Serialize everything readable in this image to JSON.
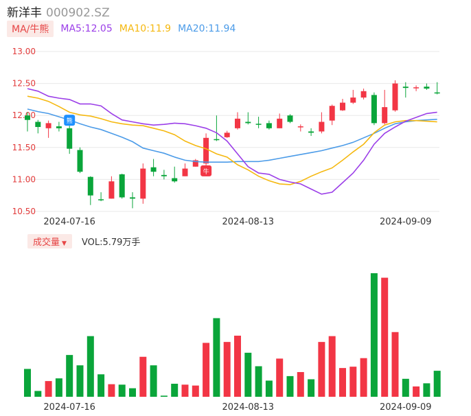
{
  "header": {
    "name": "新洋丰",
    "code": "000902.SZ"
  },
  "ma_legend": {
    "tag": "MA/牛熊",
    "items": [
      {
        "label": "MA5:12.05",
        "color": "#9b3ee8"
      },
      {
        "label": "MA10:11.9",
        "color": "#f5b80f"
      },
      {
        "label": "MA20:11.94",
        "color": "#4b9be8"
      }
    ]
  },
  "volume_legend": {
    "tag": "成交量",
    "value": "VOL:5.79万手"
  },
  "markers": {
    "sell": "熊",
    "buy": "牛"
  },
  "colors": {
    "up": "#f23645",
    "down": "#0aa53a",
    "grid": "#e8e8e8",
    "axis_label": "#e23b3b"
  },
  "chart_data": [
    {
      "type": "candlestick",
      "title": "",
      "y_ticks": [
        "13.00",
        "12.50",
        "12.00",
        "11.50",
        "11.00",
        "10.50"
      ],
      "ylim": [
        10.5,
        13.0
      ],
      "x_labels": [
        {
          "label": "2024-07-16",
          "index": 4
        },
        {
          "label": "2024-08-13",
          "index": 21
        },
        {
          "label": "2024-09-09",
          "index": 36
        }
      ],
      "candles": [
        {
          "o": 12.0,
          "c": 11.93,
          "h": 12.05,
          "l": 11.75
        },
        {
          "o": 11.9,
          "c": 11.82,
          "h": 11.93,
          "l": 11.72
        },
        {
          "o": 11.8,
          "c": 11.88,
          "h": 11.92,
          "l": 11.65
        },
        {
          "o": 11.83,
          "c": 11.8,
          "h": 11.9,
          "l": 11.75
        },
        {
          "o": 11.8,
          "c": 11.48,
          "h": 11.84,
          "l": 11.4
        },
        {
          "o": 11.46,
          "c": 11.12,
          "h": 11.5,
          "l": 11.1
        },
        {
          "o": 11.04,
          "c": 10.75,
          "h": 11.05,
          "l": 10.6
        },
        {
          "o": 10.69,
          "c": 10.68,
          "h": 10.8,
          "l": 10.66
        },
        {
          "o": 10.7,
          "c": 10.97,
          "h": 11.05,
          "l": 10.7
        },
        {
          "o": 11.08,
          "c": 10.72,
          "h": 11.09,
          "l": 10.7
        },
        {
          "o": 10.72,
          "c": 10.7,
          "h": 10.8,
          "l": 10.55
        },
        {
          "o": 10.7,
          "c": 11.17,
          "h": 11.25,
          "l": 10.62
        },
        {
          "o": 11.19,
          "c": 11.12,
          "h": 11.32,
          "l": 11.05
        },
        {
          "o": 11.07,
          "c": 11.05,
          "h": 11.15,
          "l": 11.0
        },
        {
          "o": 11.02,
          "c": 10.97,
          "h": 11.2,
          "l": 10.95
        },
        {
          "o": 11.05,
          "c": 11.17,
          "h": 11.25,
          "l": 11.05
        },
        {
          "o": 11.2,
          "c": 11.3,
          "h": 11.32,
          "l": 11.2
        },
        {
          "o": 11.25,
          "c": 11.65,
          "h": 11.72,
          "l": 11.22
        },
        {
          "o": 11.63,
          "c": 11.62,
          "h": 12.0,
          "l": 11.6
        },
        {
          "o": 11.66,
          "c": 11.73,
          "h": 11.76,
          "l": 11.65
        },
        {
          "o": 11.8,
          "c": 11.95,
          "h": 12.05,
          "l": 11.78
        },
        {
          "o": 11.9,
          "c": 11.88,
          "h": 12.05,
          "l": 11.86
        },
        {
          "o": 11.87,
          "c": 11.86,
          "h": 11.98,
          "l": 11.8
        },
        {
          "o": 11.88,
          "c": 11.8,
          "h": 11.92,
          "l": 11.78
        },
        {
          "o": 11.8,
          "c": 11.95,
          "h": 12.03,
          "l": 11.8
        },
        {
          "o": 12.0,
          "c": 11.9,
          "h": 12.02,
          "l": 11.88
        },
        {
          "o": 11.82,
          "c": 11.83,
          "h": 11.86,
          "l": 11.75
        },
        {
          "o": 11.75,
          "c": 11.73,
          "h": 11.8,
          "l": 11.68
        },
        {
          "o": 11.75,
          "c": 11.9,
          "h": 12.05,
          "l": 11.72
        },
        {
          "o": 11.92,
          "c": 12.15,
          "h": 12.17,
          "l": 11.85
        },
        {
          "o": 12.08,
          "c": 12.2,
          "h": 12.26,
          "l": 12.07
        },
        {
          "o": 12.2,
          "c": 12.28,
          "h": 12.4,
          "l": 12.18
        },
        {
          "o": 12.28,
          "c": 12.38,
          "h": 12.42,
          "l": 12.25
        },
        {
          "o": 12.32,
          "c": 11.88,
          "h": 12.36,
          "l": 11.85
        },
        {
          "o": 11.88,
          "c": 12.13,
          "h": 12.4,
          "l": 11.86
        },
        {
          "o": 12.08,
          "c": 12.5,
          "h": 12.55,
          "l": 12.06
        },
        {
          "o": 12.45,
          "c": 12.43,
          "h": 12.52,
          "l": 12.28
        },
        {
          "o": 12.43,
          "c": 12.44,
          "h": 12.47,
          "l": 12.38
        },
        {
          "o": 12.45,
          "c": 12.42,
          "h": 12.5,
          "l": 12.4
        },
        {
          "o": 12.36,
          "c": 12.35,
          "h": 12.52,
          "l": 12.33
        }
      ],
      "ma5": [
        12.42,
        12.38,
        12.3,
        12.27,
        12.25,
        12.18,
        12.18,
        12.15,
        12.03,
        11.93,
        11.9,
        11.87,
        11.85,
        11.86,
        11.88,
        11.87,
        11.84,
        11.8,
        11.73,
        11.6,
        11.4,
        11.2,
        11.1,
        11.08,
        11.0,
        10.96,
        10.93,
        10.85,
        10.77,
        10.8,
        10.95,
        11.1,
        11.3,
        11.55,
        11.72,
        11.82,
        11.91,
        11.97,
        12.03,
        12.05
      ],
      "ma10": [
        12.3,
        12.27,
        12.22,
        12.14,
        12.05,
        12.01,
        11.99,
        11.95,
        11.9,
        11.87,
        11.85,
        11.84,
        11.8,
        11.76,
        11.7,
        11.6,
        11.53,
        11.48,
        11.4,
        11.35,
        11.23,
        11.15,
        11.05,
        10.98,
        10.93,
        10.92,
        10.97,
        11.05,
        11.12,
        11.18,
        11.3,
        11.43,
        11.55,
        11.73,
        11.85,
        11.9,
        11.92,
        11.92,
        11.91,
        11.9
      ],
      "ma20": [
        12.1,
        12.06,
        12.03,
        11.98,
        11.93,
        11.87,
        11.82,
        11.78,
        11.72,
        11.66,
        11.59,
        11.49,
        11.45,
        11.41,
        11.35,
        11.3,
        11.28,
        11.27,
        11.27,
        11.27,
        11.28,
        11.28,
        11.28,
        11.3,
        11.33,
        11.36,
        11.39,
        11.42,
        11.45,
        11.49,
        11.53,
        11.58,
        11.65,
        11.72,
        11.8,
        11.87,
        11.9,
        11.92,
        11.93,
        11.94
      ],
      "buy_signal_index": 17,
      "sell_signal_index": 4
    },
    {
      "type": "bar",
      "title": "",
      "unit": "万手",
      "latest": 5.79,
      "values": [
        6.2,
        1.3,
        3.5,
        4.1,
        9.3,
        7.0,
        13.5,
        5.0,
        2.8,
        2.7,
        1.9,
        8.9,
        7.0,
        0.25,
        2.9,
        2.7,
        2.5,
        12.0,
        17.5,
        12.2,
        13.6,
        9.8,
        6.8,
        3.6,
        8.5,
        4.6,
        5.5,
        3.9,
        12.2,
        13.5,
        6.4,
        6.7,
        8.6,
        27.5,
        26.5,
        14.4,
        4.0,
        2.3,
        3.0,
        5.79
      ]
    }
  ]
}
